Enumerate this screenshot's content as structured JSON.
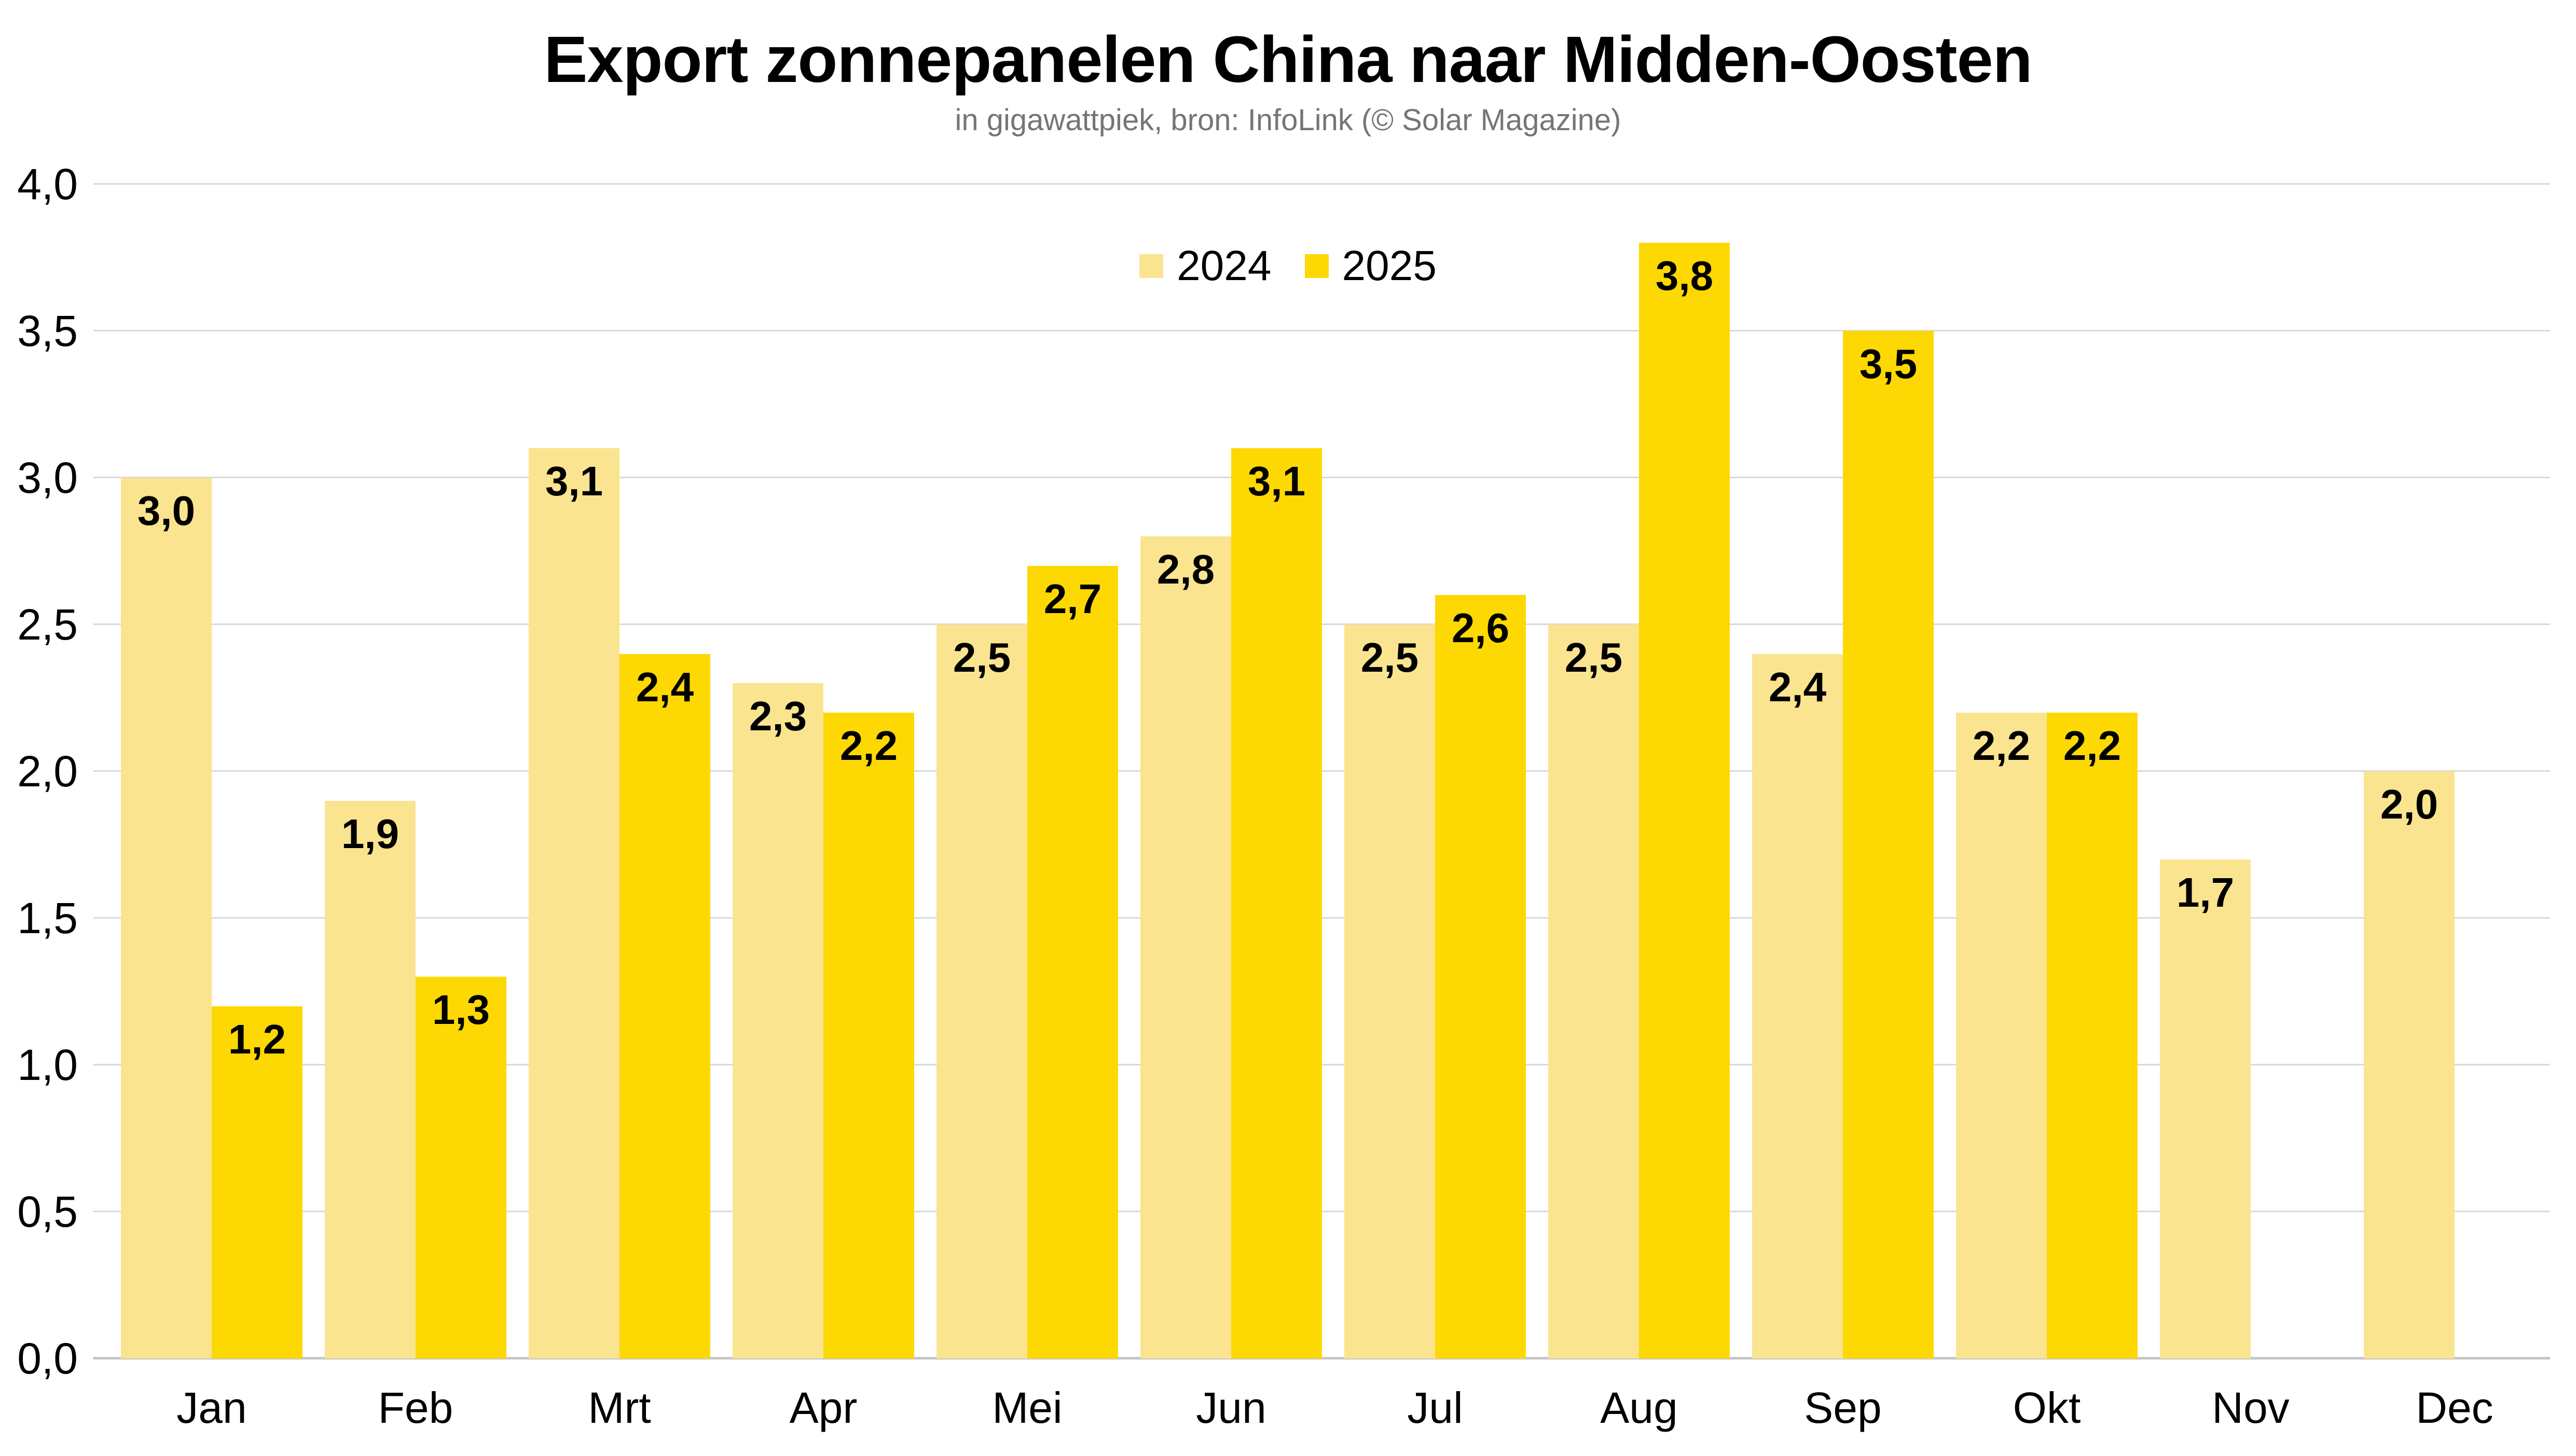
{
  "header": {
    "title": "Export zonnepanelen China naar Midden-Oosten",
    "subtitle": "in gigawattpiek, bron: InfoLink (© Solar Magazine)"
  },
  "legend": {
    "items": [
      {
        "label": "2024",
        "color": "#FAE48F"
      },
      {
        "label": "2025",
        "color": "#FED802"
      }
    ]
  },
  "colors": {
    "background": "#ffffff",
    "grid": "#d9d9d9",
    "axis": "#c6c6c6",
    "text": "#000000",
    "subtitle_text": "#757575",
    "series_2024": "#FAE48F",
    "series_2025": "#FED802"
  },
  "chart_data": {
    "type": "bar",
    "title": "Export zonnepanelen China naar Midden-Oosten",
    "subtitle": "in gigawattpiek, bron: InfoLink (© Solar Magazine)",
    "unit": "gigawattpiek (GWp)",
    "categories": [
      "Jan",
      "Feb",
      "Mrt",
      "Apr",
      "Mei",
      "Jun",
      "Jul",
      "Aug",
      "Sep",
      "Okt",
      "Nov",
      "Dec"
    ],
    "series": [
      {
        "name": "2024",
        "color": "#FAE48F",
        "values": [
          3.0,
          1.9,
          3.1,
          2.3,
          2.5,
          2.8,
          2.5,
          2.5,
          2.4,
          2.2,
          1.7,
          2.0
        ],
        "labels": [
          "3,0",
          "1,9",
          "3,1",
          "2,3",
          "2,5",
          "2,8",
          "2,5",
          "2,5",
          "2,4",
          "2,2",
          "1,7",
          "2,0"
        ]
      },
      {
        "name": "2025",
        "color": "#FED802",
        "values": [
          1.2,
          1.3,
          2.4,
          2.2,
          2.7,
          3.1,
          2.6,
          3.8,
          3.5,
          2.2,
          null,
          null
        ],
        "labels": [
          "1,2",
          "1,3",
          "2,4",
          "2,2",
          "2,7",
          "3,1",
          "2,6",
          "3,8",
          "3,5",
          "2,2",
          null,
          null
        ]
      }
    ],
    "ylim": [
      0,
      4
    ],
    "ytick_values": [
      0,
      0.5,
      1.0,
      1.5,
      2.0,
      2.5,
      3.0,
      3.5,
      4.0
    ],
    "ytick_labels": [
      "0,0",
      "0,5",
      "1,0",
      "1,5",
      "2,0",
      "2,5",
      "3,0",
      "3,5",
      "4,0"
    ],
    "grid": true,
    "legend_position": "top-center",
    "value_labels": "inside-top, comma decimal"
  }
}
